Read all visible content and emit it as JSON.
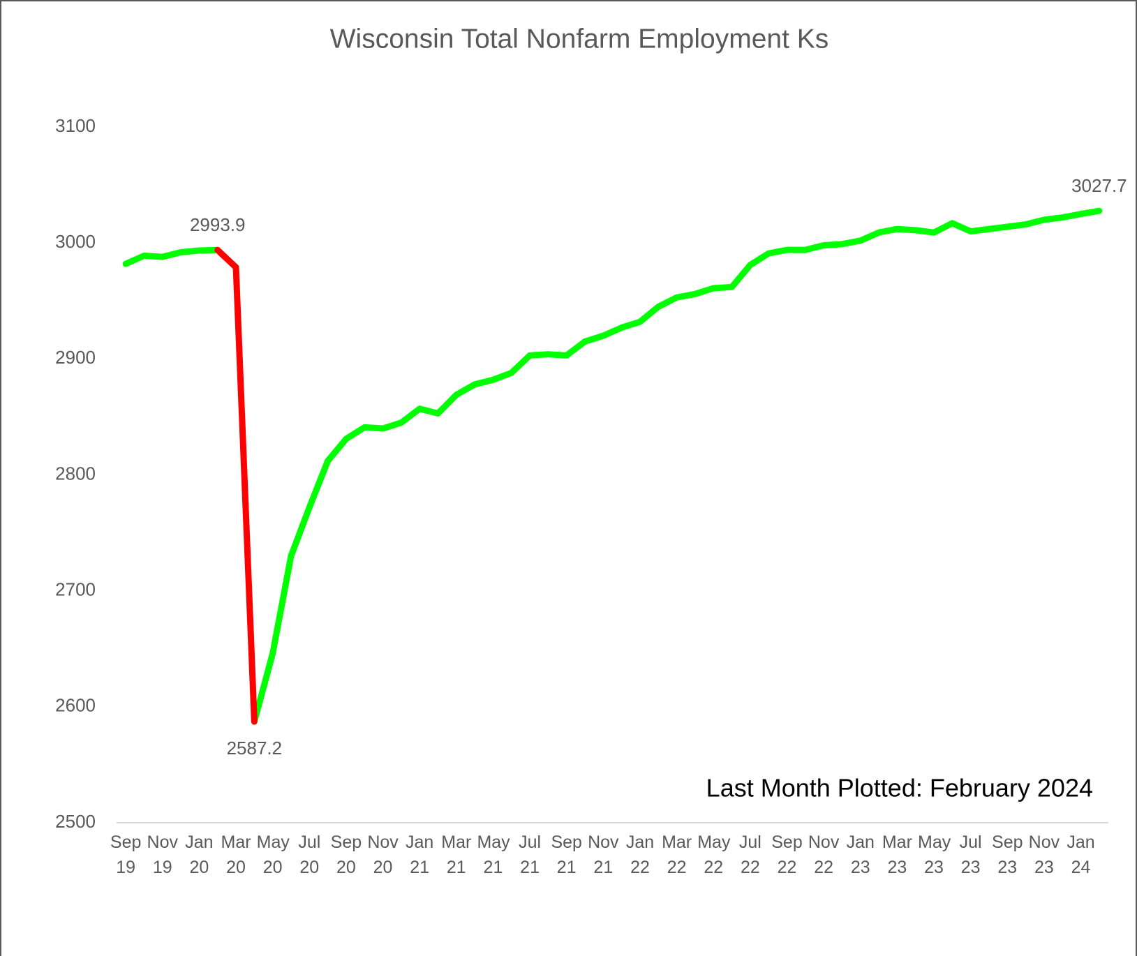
{
  "chart_data": {
    "type": "line",
    "title": "Wisconsin Total Nonfarm Employment Ks",
    "annotation": "Last Month Plotted:  February 2024",
    "categories": [
      "Sep 19",
      null,
      "Nov 19",
      null,
      "Jan 20",
      null,
      "Mar 20",
      null,
      "May 20",
      null,
      "Jul 20",
      null,
      "Sep 20",
      null,
      "Nov 20",
      null,
      "Jan 21",
      null,
      "Mar 21",
      null,
      "May 21",
      null,
      "Jul 21",
      null,
      "Sep 21",
      null,
      "Nov 21",
      null,
      "Jan 22",
      null,
      "Mar 22",
      null,
      "May 22",
      null,
      "Jul 22",
      null,
      "Sep 22",
      null,
      "Nov 22",
      null,
      "Jan 23",
      null,
      "Mar 23",
      null,
      "May 23",
      null,
      "Jul 23",
      null,
      "Sep 23",
      null,
      "Nov 23",
      null,
      "Jan 24",
      null
    ],
    "series": [
      {
        "color": "#00ff00",
        "values": [
          2982,
          2989,
          2988,
          2992,
          2993.5,
          2993.9,
          null,
          2587.2,
          2646,
          2730,
          2772,
          2812,
          2831,
          2841,
          2840,
          2845,
          2857,
          2853,
          2869,
          2878,
          2882,
          2888,
          2903,
          2904,
          2903,
          2915,
          2920,
          2927,
          2932,
          2945,
          2953,
          2956,
          2961,
          2962,
          2981,
          2991,
          2994,
          2994,
          2998,
          2999,
          3002,
          3009,
          3012,
          3011,
          3009,
          3017,
          3010,
          3012,
          3014,
          3016,
          3020,
          3022,
          3025,
          3027.7
        ],
        "value_labels": [
          null,
          null,
          null,
          null,
          null,
          "2993.9",
          null,
          "2587.2",
          null,
          null,
          null,
          null,
          null,
          null,
          null,
          null,
          null,
          null,
          null,
          null,
          null,
          null,
          null,
          null,
          null,
          null,
          null,
          null,
          null,
          null,
          null,
          null,
          null,
          null,
          null,
          null,
          null,
          null,
          null,
          null,
          null,
          null,
          null,
          null,
          null,
          null,
          null,
          null,
          null,
          null,
          null,
          null,
          null,
          "3027.7"
        ]
      },
      {
        "color": "#ff0000",
        "values": [
          null,
          null,
          null,
          null,
          null,
          2993.9,
          2979,
          2587.2,
          null,
          null,
          null,
          null,
          null,
          null,
          null,
          null,
          null,
          null,
          null,
          null,
          null,
          null,
          null,
          null,
          null,
          null,
          null,
          null,
          null,
          null,
          null,
          null,
          null,
          null,
          null,
          null,
          null,
          null,
          null,
          null,
          null,
          null,
          null,
          null,
          null,
          null,
          null,
          null,
          null,
          null,
          null,
          null,
          null,
          null
        ]
      }
    ],
    "ylim": [
      2500,
      3100
    ],
    "yticks": [
      2500,
      2600,
      2700,
      2800,
      2900,
      3000,
      3100
    ],
    "grid": false
  }
}
